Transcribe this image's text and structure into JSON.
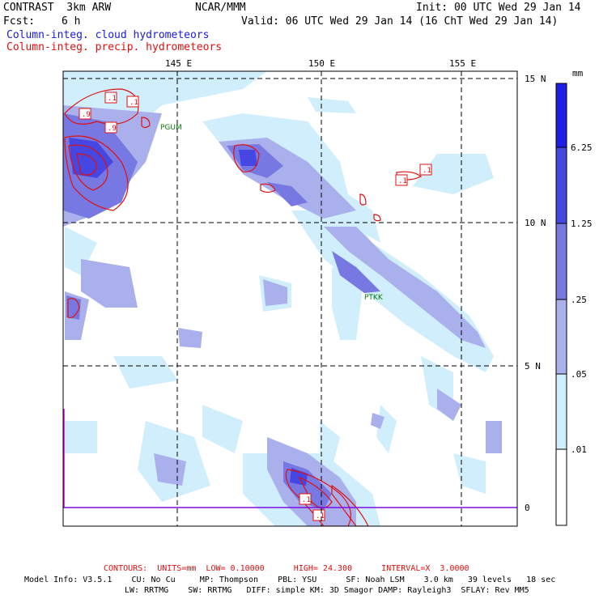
{
  "header": {
    "model": "CONTRAST  3km ARW",
    "org": "NCAR/MMM",
    "init": "Init: 00 UTC Wed 29 Jan 14",
    "fcst_label": "Fcst:",
    "fcst_value": "6 h",
    "valid": "Valid: 06 UTC Wed 29 Jan 14 (16 ChT Wed 29 Jan 14)",
    "field1": "Column-integ. cloud hydrometeors",
    "field2": "Column-integ. precip. hydrometeors"
  },
  "map": {
    "lon_labels": [
      "145 E",
      "150 E",
      "155 E"
    ],
    "lat_labels": [
      "15 N",
      "10 N",
      "5 N",
      "0"
    ],
    "stations": [
      "PGUM",
      "PTKK"
    ],
    "contour_labels": [
      ".1",
      ".1",
      ".9",
      ".9",
      ".1",
      ".1",
      ".1",
      ".1"
    ]
  },
  "colorbar": {
    "unit": "mm",
    "levels": [
      "6.25",
      "1.25",
      ".25",
      ".05",
      ".01"
    ],
    "colors": [
      "#1e1ee6",
      "#4646e2",
      "#7878e2",
      "#aab0ec",
      "#d0eefc",
      "#ffffff"
    ]
  },
  "footer": {
    "contours": "CONTOURS:  UNITS=mm  LOW= 0.10000      HIGH= 24.300      INTERVAL=X  3.0000",
    "model_info": "Model Info: V3.5.1    CU: No Cu     MP: Thompson    PBL: YSU      SF: Noah LSM    3.0 km   39 levels   18 sec",
    "physics": "LW: RRTMG    SW: RRTMG   DIFF: simple KM: 3D Smagor DAMP: Rayleigh3  SFLAY: Rev MM5"
  }
}
